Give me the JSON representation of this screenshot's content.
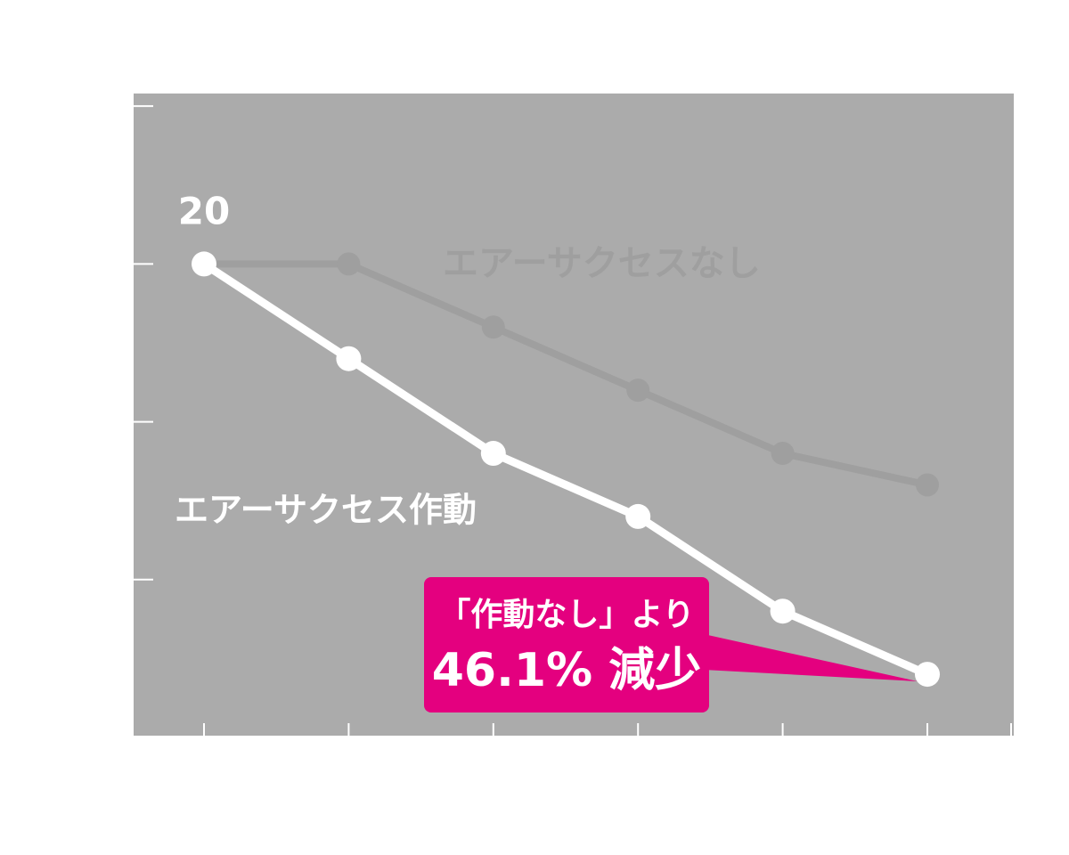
{
  "chart_data": {
    "type": "line",
    "categories": [
      null,
      null,
      null,
      null,
      null,
      null
    ],
    "series": [
      {
        "name": "エアーサクセス作動",
        "color": "#ffffff",
        "values": [
          20,
          17,
          14,
          12,
          9,
          7
        ]
      },
      {
        "name": "エアーサクセスなし",
        "color": "#9f9f9f",
        "values": [
          20,
          20,
          18,
          16,
          14,
          13
        ]
      }
    ],
    "ylim": [
      5,
      25.4
    ],
    "yticks": [
      25,
      20,
      15,
      10,
      5
    ],
    "background": "#ababab",
    "annotation": {
      "lines": [
        "「作動なし」より",
        "46.1% 減少"
      ],
      "color": "#e4007f"
    }
  }
}
